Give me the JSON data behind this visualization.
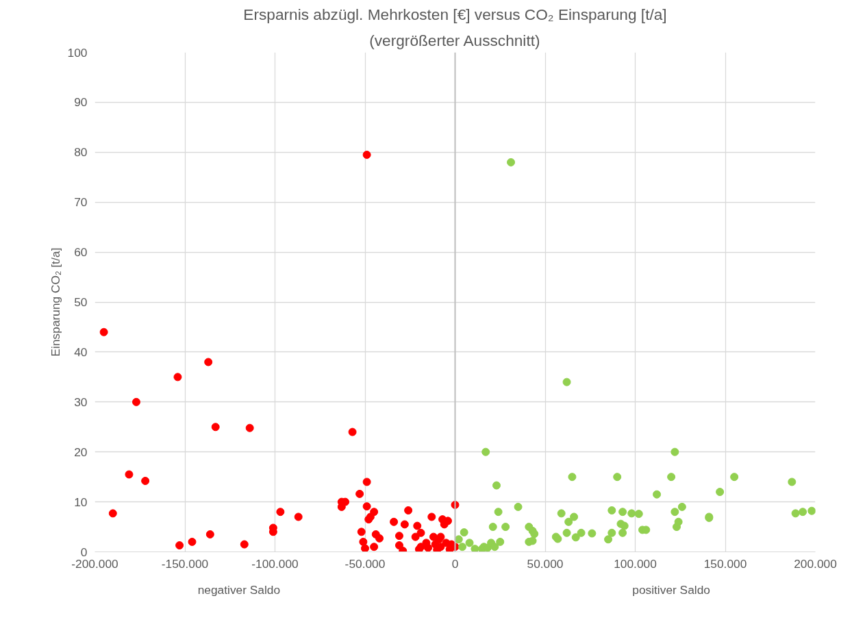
{
  "chart_data": {
    "type": "scatter",
    "title": "Ersparnis abzügl. Mehrkosten [€] versus CO₂ Einsparung [t/a]",
    "subtitle": "(vergrößerter Ausschnitt)",
    "ylabel": "Einsparung CO₂ [t/a]",
    "annotations": [
      "negativer Saldo",
      "positiver Saldo"
    ],
    "xlim": [
      -200000,
      200000
    ],
    "ylim": [
      0,
      100
    ],
    "xticks": [
      {
        "value": -200000,
        "label": "-200.000"
      },
      {
        "value": -150000,
        "label": "-150.000"
      },
      {
        "value": -100000,
        "label": "-100.000"
      },
      {
        "value": -50000,
        "label": "-50.000"
      },
      0,
      {
        "value": 50000,
        "label": "50.000"
      },
      {
        "value": 100000,
        "label": "100.000"
      },
      {
        "value": 150000,
        "label": "150.000"
      },
      {
        "value": 200000,
        "label": "200.000"
      }
    ],
    "yticks": [
      0,
      10,
      20,
      30,
      40,
      50,
      60,
      70,
      80,
      90,
      100
    ],
    "grid": true,
    "marker": "circle",
    "ref_lines": [
      {
        "axis": "x",
        "value": 0,
        "color": "#bfbfbf"
      }
    ],
    "series": [
      {
        "color": "#ff0000",
        "x": [
          -195000,
          -190000,
          -181000,
          -177000,
          -172000,
          -154000,
          -153000,
          -146000,
          -137000,
          -136000,
          -133000,
          -117000,
          -114000,
          -101000,
          -101000,
          -97000,
          -87000,
          -63000,
          -63000,
          -61000,
          -57000,
          -53000,
          -52000,
          -51000,
          -50000,
          -49000,
          -49000,
          -49000,
          -48000,
          -47000,
          -45000,
          -45000,
          -44000,
          -42000,
          -34000,
          -31000,
          -31000,
          -29000,
          -28000,
          -26000,
          -22000,
          -21000,
          -20000,
          -19000,
          -19000,
          -16000,
          -15000,
          -13000,
          -12000,
          -11000,
          -10000,
          -9000,
          -8000,
          -7000,
          -6000,
          -5000,
          -4000,
          -3000,
          -2000,
          0,
          0,
          -8000
        ],
        "values": [
          44,
          7.7,
          15.5,
          30,
          14.2,
          35,
          1.3,
          2,
          38,
          3.5,
          25,
          1.5,
          24.8,
          4,
          4.8,
          8,
          7,
          9,
          10,
          10,
          24,
          11.6,
          4,
          2,
          0.7,
          79.5,
          14,
          9.1,
          6.5,
          7,
          8,
          1,
          3.5,
          2.7,
          6,
          3.2,
          1.3,
          0.2,
          5.5,
          8.3,
          3,
          5.2,
          0.5,
          1,
          3.8,
          1.8,
          0.8,
          7,
          3,
          1.5,
          0.4,
          2.5,
          1,
          6.5,
          5.5,
          1.8,
          6.2,
          0.5,
          1.5,
          9.4,
          1,
          3
        ]
      },
      {
        "color": "#92d050",
        "x": [
          2000,
          4000,
          5000,
          8000,
          11000,
          15000,
          16000,
          17000,
          18000,
          20000,
          21000,
          22000,
          23000,
          24000,
          25000,
          28000,
          31000,
          35000,
          41000,
          41000,
          43000,
          43000,
          44000,
          56000,
          57000,
          59000,
          62000,
          62000,
          63000,
          65000,
          66000,
          67000,
          70000,
          76000,
          85000,
          87000,
          87000,
          90000,
          92000,
          93000,
          93000,
          94000,
          98000,
          102000,
          104000,
          106000,
          112000,
          120000,
          122000,
          122000,
          123000,
          124000,
          126000,
          141000,
          141000,
          147000,
          155000,
          187000,
          189000,
          193000,
          198000
        ],
        "values": [
          2.5,
          1,
          3.9,
          1.8,
          0.6,
          0.6,
          1,
          20,
          0.8,
          1.8,
          5,
          1,
          13.3,
          8,
          2,
          5,
          78,
          9,
          2,
          5,
          4.2,
          2.2,
          3.6,
          3,
          2.6,
          7.7,
          34,
          3.8,
          6,
          15,
          7,
          2.9,
          3.8,
          3.7,
          2.5,
          8.3,
          3.8,
          15,
          5.6,
          3.8,
          8,
          5.2,
          7.7,
          7.6,
          4.4,
          4.4,
          11.5,
          15,
          8,
          20,
          5,
          6,
          9,
          7,
          6.8,
          12,
          15,
          14,
          7.7,
          8,
          8.2
        ]
      }
    ]
  }
}
